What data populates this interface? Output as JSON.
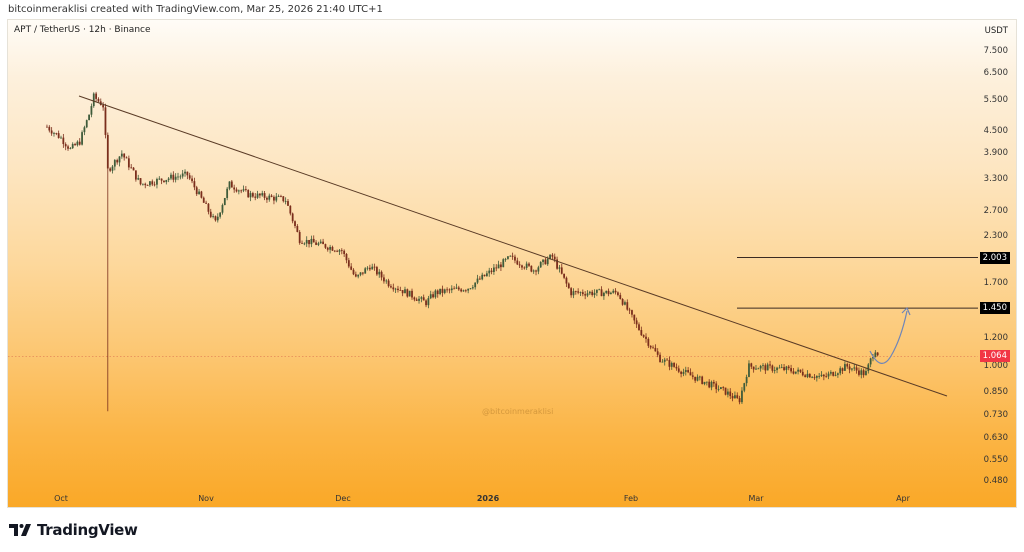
{
  "header": {
    "credit": "bitcoinmeraklisi created with TradingView.com, Mar 25, 2026 21:40 UTC+1"
  },
  "chart": {
    "symbol_line": "APT / TetherUS · 12h · Binance",
    "watermark": "@bitcoinmeraklisi",
    "price_axis": {
      "unit": "USDT",
      "ticks": [
        "7.500",
        "6.500",
        "5.500",
        "4.500",
        "3.900",
        "3.300",
        "2.700",
        "2.300",
        "1.700",
        "1.200",
        "1.000",
        "0.850",
        "0.730",
        "0.630",
        "0.550",
        "0.480"
      ]
    },
    "tags": {
      "level_upper": "2.003",
      "level_lower": "1.450",
      "current_price": "1.064"
    },
    "time_axis": {
      "ticks": [
        "Oct",
        "Nov",
        "Dec",
        "2026",
        "Feb",
        "Mar",
        "Apr"
      ]
    },
    "colors": {
      "bull": "#3f5b3a",
      "bear": "#7a2e1c",
      "trendline": "#5a3b26",
      "level_line": "#3a2a22",
      "current_tag": "#f23645",
      "level_tag": "#000000",
      "projection": "#6f86b8"
    }
  },
  "footer": {
    "brand": "TradingView"
  },
  "chart_data": {
    "type": "candlestick",
    "title": "APT / TetherUS · 12h · Binance",
    "xlabel": "",
    "ylabel": "USDT",
    "y_scale": "log",
    "ylim": [
      0.45,
      8.0
    ],
    "x_ticks": [
      "Oct",
      "Nov",
      "Dec",
      "2026",
      "Feb",
      "Mar",
      "Apr"
    ],
    "y_ticks": [
      7.5,
      6.5,
      5.5,
      4.5,
      3.9,
      3.3,
      2.7,
      2.3,
      1.7,
      1.2,
      1.0,
      0.85,
      0.73,
      0.63,
      0.55,
      0.48
    ],
    "approx_close_path": [
      {
        "date": "2025-09-28",
        "close": 4.62
      },
      {
        "date": "2025-10-01",
        "close": 4.3
      },
      {
        "date": "2025-10-03",
        "close": 4.0
      },
      {
        "date": "2025-10-05",
        "close": 4.2
      },
      {
        "date": "2025-10-07",
        "close": 5.0
      },
      {
        "date": "2025-10-08",
        "close": 5.6
      },
      {
        "date": "2025-10-10",
        "close": 5.3
      },
      {
        "date": "2025-10-11",
        "close": 3.5,
        "low": 0.75
      },
      {
        "date": "2025-10-14",
        "close": 3.9
      },
      {
        "date": "2025-10-18",
        "close": 3.2
      },
      {
        "date": "2025-10-25",
        "close": 3.35
      },
      {
        "date": "2025-10-28",
        "close": 3.4
      },
      {
        "date": "2025-11-03",
        "close": 2.5
      },
      {
        "date": "2025-11-06",
        "close": 3.2
      },
      {
        "date": "2025-11-10",
        "close": 3.0
      },
      {
        "date": "2025-11-18",
        "close": 2.9
      },
      {
        "date": "2025-11-21",
        "close": 2.25
      },
      {
        "date": "2025-11-30",
        "close": 2.1
      },
      {
        "date": "2025-12-03",
        "close": 1.75
      },
      {
        "date": "2025-12-06",
        "close": 1.9
      },
      {
        "date": "2025-12-10",
        "close": 1.7
      },
      {
        "date": "2025-12-18",
        "close": 1.5
      },
      {
        "date": "2025-12-20",
        "close": 1.6
      },
      {
        "date": "2025-12-27",
        "close": 1.65
      },
      {
        "date": "2026-01-05",
        "close": 2.0
      },
      {
        "date": "2026-01-10",
        "close": 1.85
      },
      {
        "date": "2026-01-14",
        "close": 2.02
      },
      {
        "date": "2026-01-18",
        "close": 1.6
      },
      {
        "date": "2026-01-28",
        "close": 1.6
      },
      {
        "date": "2026-02-01",
        "close": 1.3
      },
      {
        "date": "2026-02-06",
        "close": 1.05
      },
      {
        "date": "2026-02-12",
        "close": 0.95
      },
      {
        "date": "2026-02-20",
        "close": 0.85
      },
      {
        "date": "2026-02-23",
        "close": 0.8
      },
      {
        "date": "2026-02-25",
        "close": 1.0
      },
      {
        "date": "2026-03-05",
        "close": 0.98
      },
      {
        "date": "2026-03-13",
        "close": 0.93
      },
      {
        "date": "2026-03-18",
        "close": 1.0
      },
      {
        "date": "2026-03-22",
        "close": 0.95
      },
      {
        "date": "2026-03-24",
        "close": 1.12
      },
      {
        "date": "2026-03-25",
        "close": 1.064
      }
    ],
    "annotations": {
      "descending_trendline": {
        "from": {
          "date": "2025-10-08",
          "price": 5.7
        },
        "to": {
          "date": "2026-04-10",
          "price": 0.82
        }
      },
      "horizontal_levels": [
        2.003,
        1.45
      ],
      "current_price": 1.064,
      "projection_arrow": {
        "from": 1.08,
        "dip": 0.98,
        "to": 1.45
      }
    }
  }
}
